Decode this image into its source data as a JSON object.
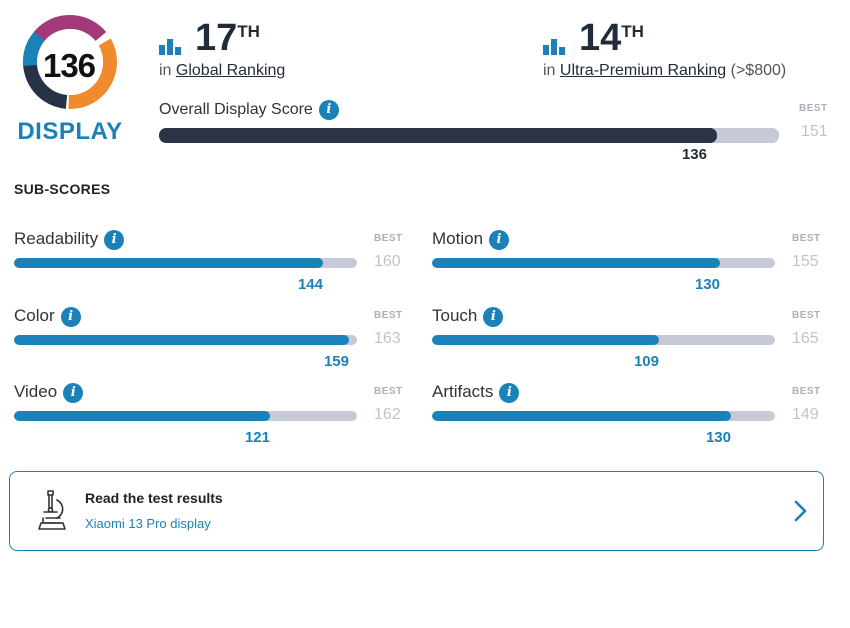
{
  "badge": {
    "score": "136",
    "label": "DISPLAY"
  },
  "global_rank": {
    "number": "17",
    "suffix": "TH",
    "prefix": "in",
    "link": "Global Ranking"
  },
  "segment_rank": {
    "number": "14",
    "suffix": "TH",
    "prefix": "in",
    "link": "Ultra-Premium Ranking",
    "extra": "(>$800)"
  },
  "overall": {
    "label": "Overall Display Score",
    "score": 136,
    "best_label": "BEST",
    "best": 151
  },
  "subscores_heading": "SUB-SCORES",
  "subscores": [
    {
      "label": "Readability",
      "score": 144,
      "best": 160,
      "best_label": "BEST"
    },
    {
      "label": "Motion",
      "score": 130,
      "best": 155,
      "best_label": "BEST"
    },
    {
      "label": "Color",
      "score": 159,
      "best": 163,
      "best_label": "BEST"
    },
    {
      "label": "Touch",
      "score": 109,
      "best": 165,
      "best_label": "BEST"
    },
    {
      "label": "Video",
      "score": 121,
      "best": 162,
      "best_label": "BEST"
    },
    {
      "label": "Artifacts",
      "score": 130,
      "best": 149,
      "best_label": "BEST"
    }
  ],
  "test_card": {
    "title": "Read the test results",
    "link": "Xiaomi 13 Pro display",
    "icon": "microscope-icon"
  },
  "colors": {
    "accent": "#1a82b8",
    "dark_bar": "#2b3344",
    "track": "#c5cad6",
    "best_text": "#c0c4ca"
  },
  "info_glyph": "i"
}
